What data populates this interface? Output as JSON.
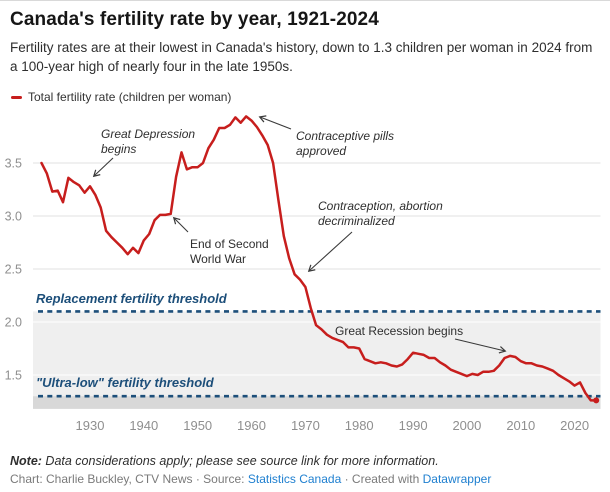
{
  "header": {
    "title": "Canada's fertility rate by year, 1921-2024",
    "subtitle": "Fertility rates are at their lowest in Canada's history, down to 1.3 children per woman in 2024 from a 100-year high of nearly four in the late 1950s."
  },
  "legend": {
    "label": "Total fertility rate (children per woman)",
    "color": "#c71e1d"
  },
  "chart_data": {
    "type": "line",
    "title": "Canada's fertility rate by year, 1921-2024",
    "series_name": "Total fertility rate (children per woman)",
    "xlabel": "",
    "ylabel": "",
    "xlim": [
      1921,
      2024
    ],
    "ylim": [
      1.18,
      4.0
    ],
    "grid": true,
    "line_color": "#c71e1d",
    "x_ticks": [
      1930,
      1940,
      1950,
      1960,
      1970,
      1980,
      1990,
      2000,
      2010,
      2020
    ],
    "y_ticks": [
      1.5,
      2.0,
      2.5,
      3.0,
      3.5
    ],
    "x": [
      1921,
      1922,
      1923,
      1924,
      1925,
      1926,
      1927,
      1928,
      1929,
      1930,
      1931,
      1932,
      1933,
      1934,
      1935,
      1936,
      1937,
      1938,
      1939,
      1940,
      1941,
      1942,
      1943,
      1944,
      1945,
      1946,
      1947,
      1948,
      1949,
      1950,
      1951,
      1952,
      1953,
      1954,
      1955,
      1956,
      1957,
      1958,
      1959,
      1960,
      1961,
      1962,
      1963,
      1964,
      1965,
      1966,
      1967,
      1968,
      1969,
      1970,
      1971,
      1972,
      1973,
      1974,
      1975,
      1976,
      1977,
      1978,
      1979,
      1980,
      1981,
      1982,
      1983,
      1984,
      1985,
      1986,
      1987,
      1988,
      1989,
      1990,
      1991,
      1992,
      1993,
      1994,
      1995,
      1996,
      1997,
      1998,
      1999,
      2000,
      2001,
      2002,
      2003,
      2004,
      2005,
      2006,
      2007,
      2008,
      2009,
      2010,
      2011,
      2012,
      2013,
      2014,
      2015,
      2016,
      2017,
      2018,
      2019,
      2020,
      2021,
      2022,
      2023,
      2024
    ],
    "values": [
      3.5,
      3.4,
      3.23,
      3.24,
      3.13,
      3.36,
      3.32,
      3.29,
      3.22,
      3.28,
      3.2,
      3.08,
      2.86,
      2.8,
      2.75,
      2.7,
      2.64,
      2.7,
      2.65,
      2.77,
      2.83,
      2.96,
      3.01,
      3.01,
      3.02,
      3.37,
      3.6,
      3.44,
      3.46,
      3.46,
      3.5,
      3.64,
      3.72,
      3.83,
      3.83,
      3.86,
      3.93,
      3.88,
      3.94,
      3.9,
      3.84,
      3.76,
      3.67,
      3.5,
      3.15,
      2.81,
      2.6,
      2.45,
      2.4,
      2.33,
      2.13,
      1.97,
      1.93,
      1.88,
      1.85,
      1.83,
      1.81,
      1.76,
      1.76,
      1.75,
      1.65,
      1.63,
      1.61,
      1.62,
      1.61,
      1.59,
      1.58,
      1.6,
      1.65,
      1.71,
      1.7,
      1.69,
      1.66,
      1.66,
      1.62,
      1.59,
      1.55,
      1.53,
      1.51,
      1.49,
      1.51,
      1.5,
      1.53,
      1.53,
      1.54,
      1.59,
      1.66,
      1.68,
      1.67,
      1.63,
      1.61,
      1.61,
      1.59,
      1.58,
      1.56,
      1.54,
      1.5,
      1.47,
      1.44,
      1.4,
      1.43,
      1.33,
      1.26,
      1.26
    ],
    "thresholds": [
      {
        "id": "replacement",
        "label": "Replacement fertility threshold",
        "value": 2.1,
        "color": "#1d4f7a"
      },
      {
        "id": "ultralow",
        "label": "\"Ultra-low\" fertility threshold",
        "value": 1.3,
        "color": "#1d4f7a"
      }
    ],
    "bands": [
      {
        "from": 2.1,
        "to": 1.3,
        "color": "#efefef"
      },
      {
        "from": 1.3,
        "to": 1.18,
        "color": "#d8d8d8"
      }
    ],
    "annotations": [
      {
        "id": "great-depression",
        "text": "Great Depression\nbegins",
        "italic": true
      },
      {
        "id": "end-ww2",
        "text": "End of Second\nWorld War",
        "italic": false
      },
      {
        "id": "pills",
        "text": "Contraceptive pills\napproved",
        "italic": true
      },
      {
        "id": "decriminalized",
        "text": "Contraception, abortion\ndecriminalized",
        "italic": true
      },
      {
        "id": "great-recession",
        "text": "Great Recession begins",
        "italic": false
      }
    ],
    "legend_position": "top-left"
  },
  "footer": {
    "note_label": "Note:",
    "note_text": " Data considerations apply; please see source link for more information.",
    "attribution_prefix": "Chart: Charlie Buckley, CTV News · Source: ",
    "source_link": "Statistics Canada",
    "attribution_middle": " · Created with ",
    "tool_link": "Datawrapper"
  }
}
